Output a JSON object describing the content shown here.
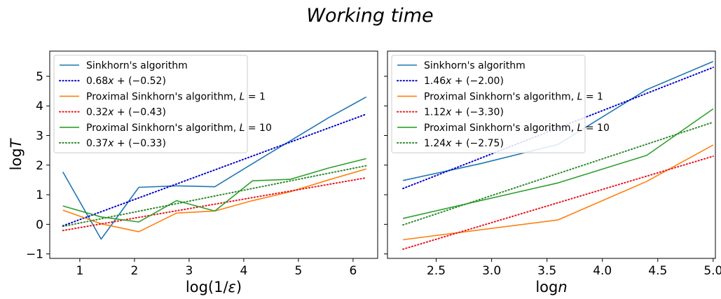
{
  "figure": {
    "title": "Working time"
  },
  "colors": {
    "sinkhorn": "#1f77b4",
    "proximal_l1": "#ff7f0e",
    "proximal_l10": "#2ca02c",
    "fit_blue": "#0000cc",
    "fit_red": "#e8141e",
    "fit_green": "#2a8a2a"
  },
  "chart_data": [
    {
      "type": "line",
      "xlabel": "log(1/ε)",
      "ylabel": "logT",
      "xlim": [
        0.45,
        6.45
      ],
      "ylim": [
        -1.15,
        5.85
      ],
      "xticks": [
        1,
        2,
        3,
        4,
        5,
        6
      ],
      "yticks": [
        -1,
        0,
        1,
        2,
        3,
        4,
        5
      ],
      "grid": false,
      "legend_position": "top-left",
      "series": [
        {
          "name": "Sinkhorn's algorithm",
          "style": "solid",
          "color_key": "sinkhorn",
          "x": [
            0.69,
            1.39,
            2.08,
            2.77,
            3.47,
            4.16,
            4.85,
            5.55,
            6.24
          ],
          "y": [
            1.77,
            -0.5,
            1.25,
            1.3,
            1.27,
            2.05,
            2.82,
            3.6,
            4.3
          ]
        },
        {
          "name": "0.68x + (−0.52)",
          "style": "dotted",
          "color_key": "fit_blue",
          "x": [
            0.69,
            6.24
          ],
          "y": [
            -0.05,
            3.72
          ]
        },
        {
          "name": "Proximal Sinkhorn's algorithm, L = 1",
          "style": "solid",
          "color_key": "proximal_l1",
          "x": [
            0.69,
            1.39,
            2.08,
            2.77,
            3.47,
            4.16,
            4.85,
            5.55,
            6.24
          ],
          "y": [
            0.48,
            0.02,
            -0.25,
            0.38,
            0.45,
            0.8,
            1.1,
            1.5,
            1.87
          ]
        },
        {
          "name": "0.32x + (−0.43)",
          "style": "dotted",
          "color_key": "fit_red",
          "x": [
            0.69,
            6.24
          ],
          "y": [
            -0.21,
            1.57
          ]
        },
        {
          "name": "Proximal Sinkhorn's algorithm, L = 10",
          "style": "solid",
          "color_key": "proximal_l10",
          "x": [
            0.69,
            1.39,
            2.08,
            2.77,
            3.47,
            4.16,
            4.85,
            5.55,
            6.24
          ],
          "y": [
            0.62,
            0.25,
            0.08,
            0.8,
            0.45,
            1.47,
            1.52,
            1.9,
            2.22
          ]
        },
        {
          "name": "0.37x + (−0.33)",
          "style": "dotted",
          "color_key": "fit_green",
          "x": [
            0.69,
            6.24
          ],
          "y": [
            -0.07,
            1.98
          ]
        }
      ]
    },
    {
      "type": "line",
      "xlabel": "logn",
      "ylabel": "",
      "xlim": [
        2.06,
        5.02
      ],
      "ylim": [
        -1.15,
        5.85
      ],
      "xticks": [
        2.5,
        3.0,
        3.5,
        4.0,
        4.5,
        5.0
      ],
      "xtick_labels": [
        "2.5",
        "3.0",
        "3.5",
        "4.0",
        "4.5",
        "5.0"
      ],
      "yticks": [
        -1,
        0,
        1,
        2,
        3,
        4,
        5
      ],
      "show_ytick_labels": false,
      "grid": false,
      "legend_position": "top-left",
      "series": [
        {
          "name": "Sinkhorn's algorithm",
          "style": "solid",
          "color_key": "sinkhorn",
          "x": [
            2.2,
            2.9,
            3.6,
            4.4,
            5.0
          ],
          "y": [
            1.48,
            2.05,
            2.7,
            4.55,
            5.5
          ]
        },
        {
          "name": "1.46x + (−2.00)",
          "style": "dotted",
          "color_key": "fit_blue",
          "x": [
            2.2,
            5.0
          ],
          "y": [
            1.21,
            5.3
          ]
        },
        {
          "name": "Proximal Sinkhorn's algorithm, L = 1",
          "style": "solid",
          "color_key": "proximal_l1",
          "x": [
            2.2,
            3.6,
            4.4,
            5.0
          ],
          "y": [
            -0.52,
            0.15,
            1.45,
            2.68
          ]
        },
        {
          "name": "1.12x + (−3.30)",
          "style": "dotted",
          "color_key": "fit_red",
          "x": [
            2.2,
            5.0
          ],
          "y": [
            -0.84,
            2.3
          ]
        },
        {
          "name": "Proximal Sinkhorn's algorithm, L = 10",
          "style": "solid",
          "color_key": "proximal_l10",
          "x": [
            2.2,
            3.6,
            4.4,
            5.0
          ],
          "y": [
            0.2,
            1.4,
            2.33,
            3.9
          ]
        },
        {
          "name": "1.24x + (−2.75)",
          "style": "dotted",
          "color_key": "fit_green",
          "x": [
            2.2,
            5.0
          ],
          "y": [
            -0.02,
            3.45
          ]
        }
      ]
    }
  ]
}
